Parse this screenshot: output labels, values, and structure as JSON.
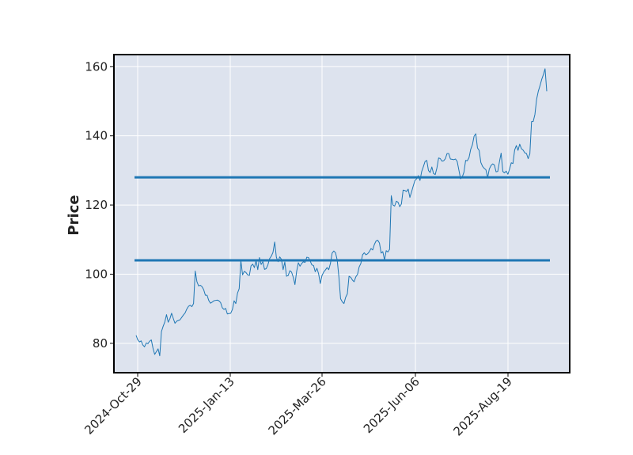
{
  "chart_data": {
    "type": "line",
    "title": "",
    "xlabel": "",
    "ylabel": "Price",
    "x_tick_labels": [
      "2024-Oct-29",
      "2025-Jan-13",
      "2025-Mar-26",
      "2025-Jun-06",
      "2025-Aug-19"
    ],
    "y_ticks": [
      80,
      100,
      120,
      140,
      160
    ],
    "ylim": [
      71.5,
      163.5
    ],
    "grid": true,
    "legend": "none",
    "colors": {
      "background": "#dde3ee",
      "line": "#1f77b4",
      "hline": "#1f77b4",
      "grid": "#ffffff",
      "frame": "#000000"
    },
    "horizontal_lines": [
      104,
      128
    ],
    "series": [
      {
        "values": [
          82.3,
          81.0,
          80.4,
          80.7,
          79.5,
          79.0,
          80.1,
          79.9,
          80.6,
          81.0,
          78.6,
          76.8,
          77.6,
          78.4,
          76.4,
          83.4,
          84.9,
          86.2,
          88.3,
          86.1,
          87.1,
          88.7,
          87.2,
          85.8,
          86.4,
          86.6,
          86.8,
          87.5,
          88.2,
          88.8,
          89.9,
          90.7,
          91.0,
          90.6,
          91.5,
          100.9,
          97.8,
          96.6,
          96.8,
          96.4,
          95.5,
          93.9,
          93.9,
          92.4,
          91.6,
          91.9,
          92.3,
          92.4,
          92.5,
          92.3,
          91.8,
          90.3,
          89.8,
          90.1,
          88.5,
          88.6,
          88.7,
          89.8,
          92.3,
          91.5,
          94.5,
          95.8,
          103.9,
          99.8,
          100.8,
          100.5,
          99.8,
          99.6,
          102.4,
          102.9,
          101.9,
          103.9,
          101.3,
          104.8,
          102.8,
          103.6,
          101.4,
          101.6,
          102.7,
          104.5,
          105.2,
          106.3,
          109.3,
          104.9,
          103.6,
          105.0,
          104.3,
          101.3,
          103.5,
          99.4,
          99.6,
          101.0,
          100.6,
          99.1,
          97.0,
          100.8,
          103.3,
          102.3,
          103.1,
          103.6,
          103.4,
          104.9,
          104.8,
          103.8,
          102.7,
          102.5,
          100.7,
          101.7,
          100.1,
          97.3,
          99.6,
          100.6,
          101.2,
          101.9,
          101.3,
          103.1,
          106.1,
          106.7,
          106.2,
          104.1,
          99.2,
          92.9,
          92.0,
          91.5,
          93.3,
          94.3,
          99.4,
          99.1,
          98.3,
          97.8,
          99.2,
          99.9,
          102.1,
          103.1,
          105.6,
          106.2,
          105.6,
          105.9,
          106.5,
          107.4,
          107.0,
          108.6,
          109.6,
          109.8,
          109.0,
          106.1,
          106.5,
          104.1,
          106.8,
          106.4,
          107.2,
          122.7,
          120.0,
          119.7,
          121.1,
          120.8,
          119.5,
          120.3,
          124.3,
          124.2,
          123.9,
          124.6,
          122.2,
          123.8,
          125.5,
          127.1,
          127.6,
          128.5,
          127.1,
          129.7,
          131.1,
          132.6,
          132.9,
          130.0,
          129.4,
          131.0,
          129.1,
          128.8,
          130.7,
          133.6,
          133.4,
          132.7,
          132.8,
          133.4,
          134.9,
          134.9,
          133.3,
          133.2,
          133.1,
          133.3,
          132.6,
          130.1,
          127.6,
          128.1,
          129.5,
          132.9,
          132.8,
          133.7,
          136.1,
          137.4,
          139.9,
          140.6,
          136.5,
          135.8,
          132.3,
          131.2,
          130.6,
          130.2,
          127.9,
          130.4,
          131.4,
          131.9,
          131.6,
          129.6,
          129.7,
          132.5,
          135.0,
          129.7,
          129.3,
          129.8,
          128.9,
          130.4,
          132.2,
          132.0,
          135.9,
          137.2,
          135.8,
          137.6,
          136.3,
          135.9,
          135.1,
          134.9,
          133.4,
          134.8,
          144.1,
          144.2,
          146.2,
          150.6,
          152.9,
          154.5,
          156.3,
          157.7,
          159.4,
          152.9
        ]
      }
    ]
  }
}
